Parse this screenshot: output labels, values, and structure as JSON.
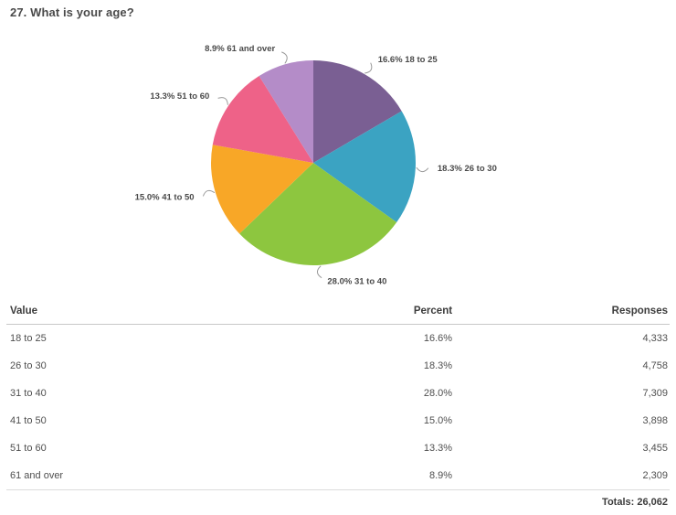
{
  "page": {
    "title": "27. What is your age?"
  },
  "chart_data": {
    "type": "pie",
    "title": "27. What is your age?",
    "start_angle_deg": 0,
    "direction": "clockwise",
    "categories": [
      "18 to 25",
      "26 to 30",
      "31 to 40",
      "41 to 50",
      "51 to 60",
      "61 and over"
    ],
    "values": [
      16.6,
      18.3,
      28.0,
      15.0,
      13.3,
      8.9
    ],
    "unit": "%",
    "responses": [
      4333,
      4758,
      7309,
      3898,
      3455,
      2309
    ],
    "labels": [
      "16.6% 18 to 25",
      "18.3% 26 to 30",
      "28.0% 31 to 40",
      "15.0% 41 to 50",
      "13.3% 51 to 60",
      "8.9% 61 and over"
    ],
    "colors": [
      "#7a5f93",
      "#3ba3c2",
      "#8dc63f",
      "#f8a727",
      "#ee6288",
      "#b48cc8"
    ],
    "leader_line_color": "#999999",
    "label_color": "#4a4a4a",
    "legend_position": "none",
    "grid": false
  },
  "table": {
    "columns": [
      "Value",
      "Percent",
      "Responses"
    ],
    "rows": [
      {
        "value": "18 to 25",
        "percent": "16.6%",
        "responses": "4,333"
      },
      {
        "value": "26 to 30",
        "percent": "18.3%",
        "responses": "4,758"
      },
      {
        "value": "31 to 40",
        "percent": "28.0%",
        "responses": "7,309"
      },
      {
        "value": "41 to 50",
        "percent": "15.0%",
        "responses": "3,898"
      },
      {
        "value": "51 to 60",
        "percent": "13.3%",
        "responses": "3,455"
      },
      {
        "value": "61 and over",
        "percent": "8.9%",
        "responses": "2,309"
      }
    ],
    "totals_label": "Totals: 26,062"
  }
}
